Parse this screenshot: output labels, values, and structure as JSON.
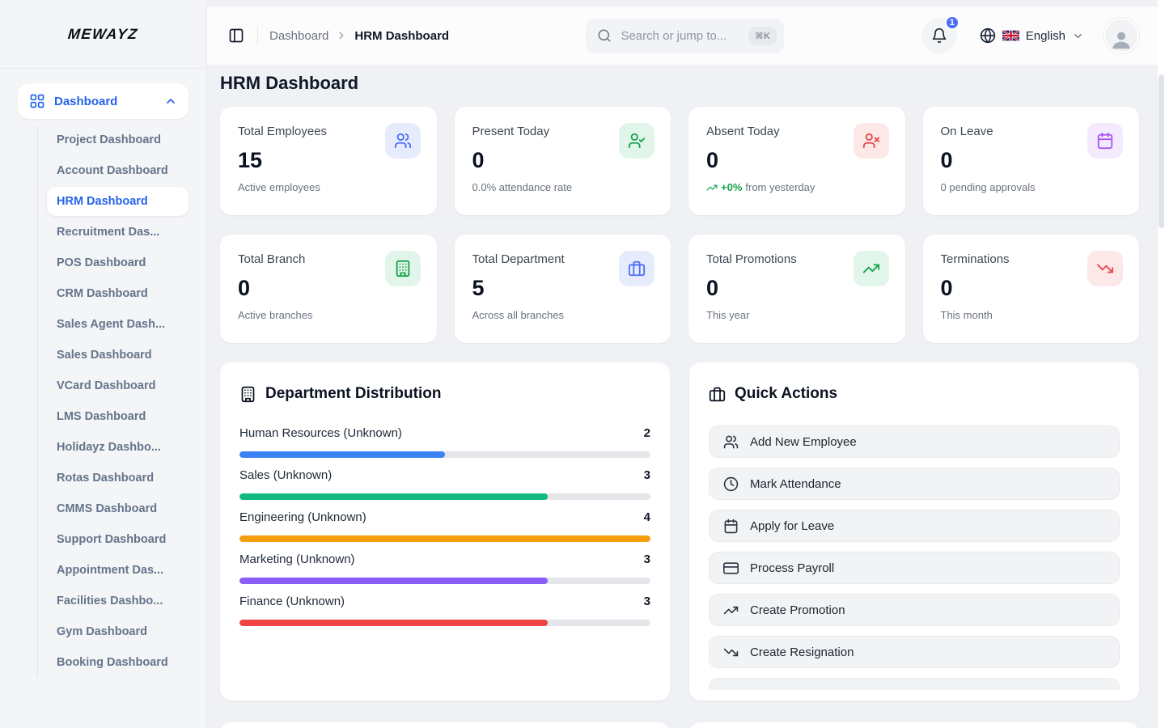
{
  "app": {
    "logo": "MEWAYZ"
  },
  "sidebar": {
    "group": {
      "label": "Dashboard",
      "icon": "dashboard-grid-icon"
    },
    "items": [
      {
        "label": "Project Dashboard",
        "active": false
      },
      {
        "label": "Account Dashboard",
        "active": false
      },
      {
        "label": "HRM Dashboard",
        "active": true
      },
      {
        "label": "Recruitment Das...",
        "active": false
      },
      {
        "label": "POS Dashboard",
        "active": false
      },
      {
        "label": "CRM Dashboard",
        "active": false
      },
      {
        "label": "Sales Agent Dash...",
        "active": false
      },
      {
        "label": "Sales Dashboard",
        "active": false
      },
      {
        "label": "VCard Dashboard",
        "active": false
      },
      {
        "label": "LMS Dashboard",
        "active": false
      },
      {
        "label": "Holidayz Dashbo...",
        "active": false
      },
      {
        "label": "Rotas Dashboard",
        "active": false
      },
      {
        "label": "CMMS Dashboard",
        "active": false
      },
      {
        "label": "Support Dashboard",
        "active": false
      },
      {
        "label": "Appointment Das...",
        "active": false
      },
      {
        "label": "Facilities Dashbo...",
        "active": false
      },
      {
        "label": "Gym Dashboard",
        "active": false
      },
      {
        "label": "Booking Dashboard",
        "active": false
      }
    ]
  },
  "header": {
    "breadcrumb": {
      "root": "Dashboard",
      "current": "HRM Dashboard"
    },
    "search": {
      "placeholder": "Search or jump to...",
      "shortcut": "⌘K"
    },
    "notifications": {
      "count": "1"
    },
    "language": {
      "label": "English",
      "flag": "uk-flag-icon"
    }
  },
  "page": {
    "title": "HRM Dashboard"
  },
  "stats": [
    {
      "title": "Total Employees",
      "value": "15",
      "sub": "Active employees",
      "icon": "users-icon",
      "accent": "#4c6ef5",
      "tint": "#e7ecfc"
    },
    {
      "title": "Present Today",
      "value": "0",
      "sub": "0.0% attendance rate",
      "icon": "user-check-icon",
      "accent": "#16a34a",
      "tint": "#e2f5ea"
    },
    {
      "title": "Absent Today",
      "value": "0",
      "sub_trend": {
        "icon": "trending-up-icon",
        "highlight": "+0%",
        "text": "from yesterday"
      },
      "icon": "user-x-icon",
      "accent": "#e5484d",
      "tint": "#fde8e8"
    },
    {
      "title": "On Leave",
      "value": "0",
      "sub": "0 pending approvals",
      "icon": "calendar-icon",
      "accent": "#a855f7",
      "tint": "#f4eafe"
    },
    {
      "title": "Total Branch",
      "value": "0",
      "sub": "Active branches",
      "icon": "building-icon",
      "accent": "#16a34a",
      "tint": "#e2f5ea"
    },
    {
      "title": "Total Department",
      "value": "5",
      "sub": "Across all branches",
      "icon": "briefcase-icon",
      "accent": "#4c6ef5",
      "tint": "#e7ecfc"
    },
    {
      "title": "Total Promotions",
      "value": "0",
      "sub": "This year",
      "icon": "trending-up-icon",
      "accent": "#16a34a",
      "tint": "#e2f5ea"
    },
    {
      "title": "Terminations",
      "value": "0",
      "sub": "This month",
      "icon": "trending-down-icon",
      "accent": "#e5484d",
      "tint": "#fde8e8"
    }
  ],
  "department_distribution": {
    "title": "Department Distribution",
    "icon": "building-icon",
    "max": 4,
    "rows": [
      {
        "label": "Human Resources (Unknown)",
        "value": 2,
        "color": "#3b82f6"
      },
      {
        "label": "Sales (Unknown)",
        "value": 3,
        "color": "#10b981"
      },
      {
        "label": "Engineering (Unknown)",
        "value": 4,
        "color": "#f59e0b"
      },
      {
        "label": "Marketing (Unknown)",
        "value": 3,
        "color": "#8b5cf6"
      },
      {
        "label": "Finance (Unknown)",
        "value": 3,
        "color": "#ef4444"
      }
    ]
  },
  "quick_actions": {
    "title": "Quick Actions",
    "icon": "briefcase-icon",
    "items": [
      {
        "icon": "users-icon",
        "label": "Add New Employee"
      },
      {
        "icon": "clock-icon",
        "label": "Mark Attendance"
      },
      {
        "icon": "calendar-icon",
        "label": "Apply for Leave"
      },
      {
        "icon": "credit-card-icon",
        "label": "Process Payroll"
      },
      {
        "icon": "trending-up-icon",
        "label": "Create Promotion"
      },
      {
        "icon": "trending-down-icon",
        "label": "Create Resignation"
      }
    ],
    "partial_item_visible": true
  }
}
